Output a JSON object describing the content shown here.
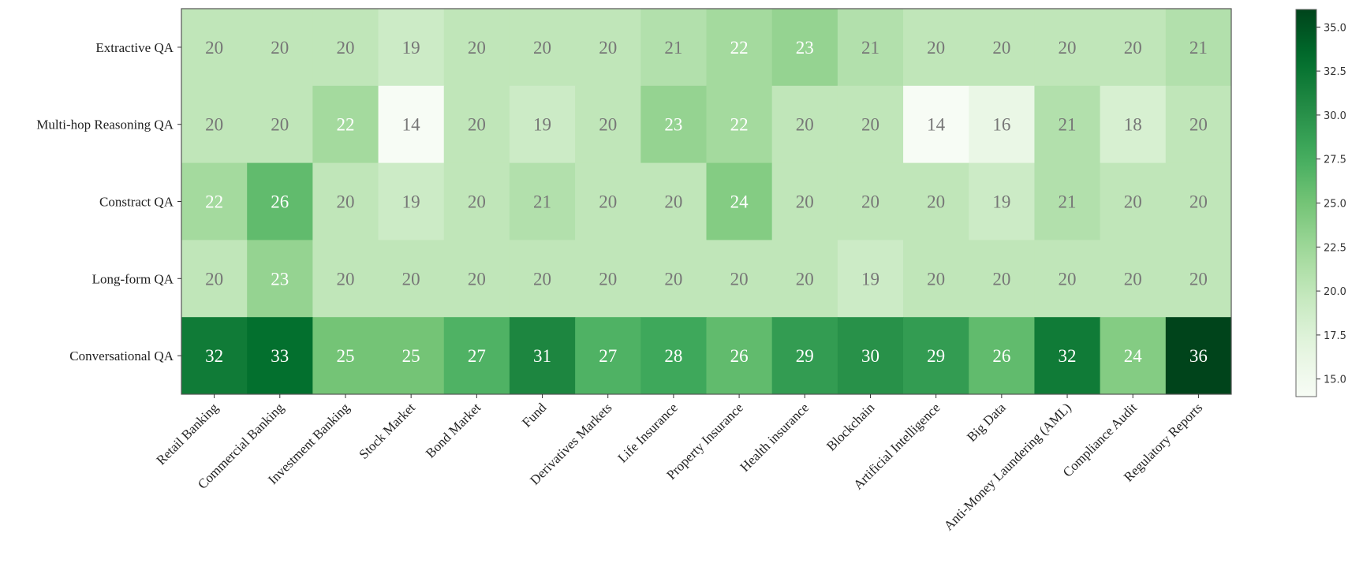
{
  "chart_data": {
    "type": "heatmap",
    "title": "",
    "xlabel": "",
    "ylabel": "",
    "rows": [
      "Extractive QA",
      "Multi-hop Reasoning QA",
      "Constract QA",
      "Long-form QA",
      "Conversational QA"
    ],
    "columns": [
      "Retail Banking",
      "Commercial Banking",
      "Investment Banking",
      "Stock Market",
      "Bond Market",
      "Fund",
      "Derivatives Markets",
      "Life Insurance",
      "Property Insurance",
      "Health insurance",
      "Blockchain",
      "Artificial Intelligence",
      "Big Data",
      "Anti-Money Laundering (AML)",
      "Compliance Audit",
      "Regulatory Reports"
    ],
    "values": [
      [
        20,
        20,
        20,
        19,
        20,
        20,
        20,
        21,
        22,
        23,
        21,
        20,
        20,
        20,
        20,
        21
      ],
      [
        20,
        20,
        22,
        14,
        20,
        19,
        20,
        23,
        22,
        20,
        20,
        14,
        16,
        21,
        18,
        20
      ],
      [
        22,
        26,
        20,
        19,
        20,
        21,
        20,
        20,
        24,
        20,
        20,
        20,
        19,
        21,
        20,
        20
      ],
      [
        20,
        23,
        20,
        20,
        20,
        20,
        20,
        20,
        20,
        20,
        19,
        20,
        20,
        20,
        20,
        20
      ],
      [
        32,
        33,
        25,
        25,
        27,
        31,
        27,
        28,
        26,
        29,
        30,
        29,
        26,
        32,
        24,
        36
      ]
    ],
    "colormap": "Greens",
    "colorbar": {
      "range": [
        14,
        36
      ],
      "ticks": [
        "15.0",
        "17.5",
        "20.0",
        "22.5",
        "25.0",
        "27.5",
        "30.0",
        "32.5",
        "35.0"
      ]
    },
    "annotations": true,
    "text_color_light": "#ffffff",
    "text_color_dark": "#777777"
  }
}
